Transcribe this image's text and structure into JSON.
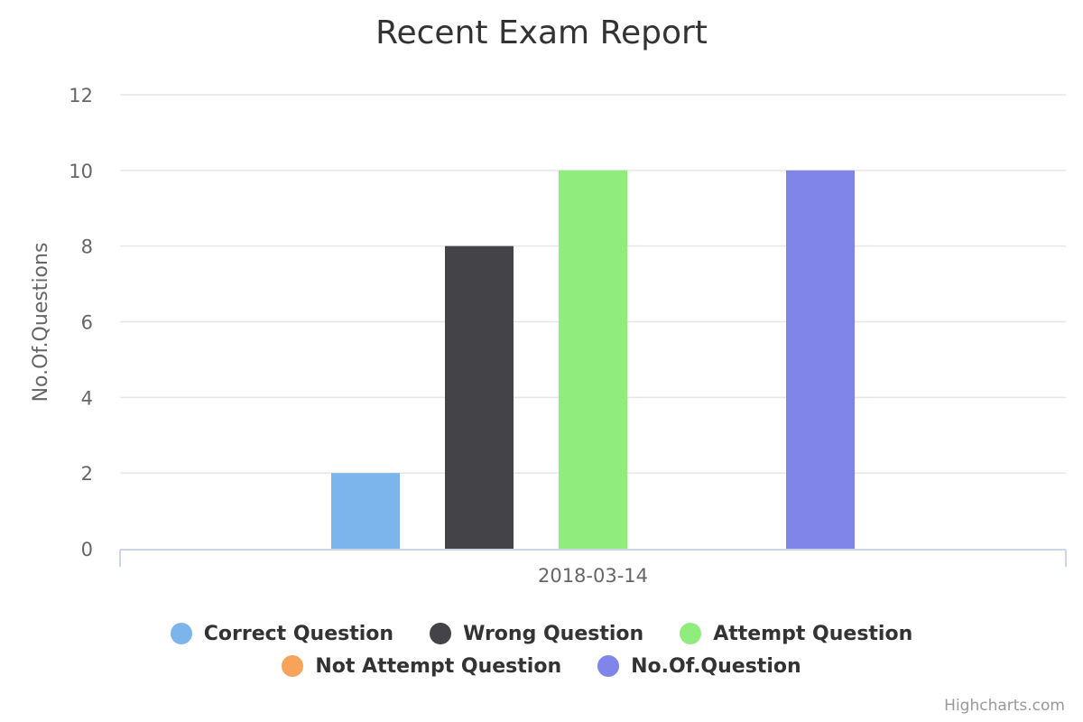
{
  "chart_data": {
    "type": "bar",
    "title": "Recent Exam Report",
    "xlabel": "",
    "ylabel": "No.Of.Questions",
    "categories": [
      "2018-03-14"
    ],
    "ylim": [
      0,
      12
    ],
    "yticks": [
      0,
      2,
      4,
      6,
      8,
      10,
      12
    ],
    "grid": true,
    "legend_position": "bottom",
    "series": [
      {
        "name": "Correct Question",
        "values": [
          2
        ],
        "color": "#7cb5ec"
      },
      {
        "name": "Wrong Question",
        "values": [
          8
        ],
        "color": "#434348"
      },
      {
        "name": "Attempt Question",
        "values": [
          10
        ],
        "color": "#90ed7d"
      },
      {
        "name": "Not Attempt Question",
        "values": [
          0
        ],
        "color": "#f7a35c"
      },
      {
        "name": "No.Of.Question",
        "values": [
          10
        ],
        "color": "#8085e9"
      }
    ]
  },
  "credits": "Highcharts.com"
}
